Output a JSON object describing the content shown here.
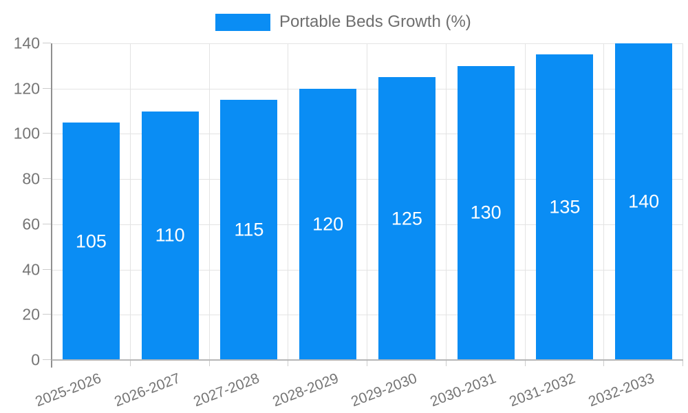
{
  "chart_data": {
    "type": "bar",
    "title": "Portable Beds Growth (%)",
    "legend": {
      "position": "top",
      "entries": [
        "Portable Beds Growth (%)"
      ]
    },
    "categories": [
      "2025-2026",
      "2026-2027",
      "2027-2028",
      "2028-2029",
      "2029-2030",
      "2030-2031",
      "2031-2032",
      "2032-2033"
    ],
    "values": [
      105,
      110,
      115,
      120,
      125,
      130,
      135,
      140
    ],
    "bar_labels": [
      "105",
      "110",
      "115",
      "120",
      "125",
      "130",
      "135",
      "140"
    ],
    "xlabel": "",
    "ylabel": "",
    "ylim": [
      0,
      140
    ],
    "yticks": [
      0,
      20,
      40,
      60,
      80,
      100,
      120,
      140
    ],
    "grid": true,
    "colors": {
      "bar": "#0A8DF4",
      "grid": "#E3E3E3",
      "tick": "#CCCCCC",
      "y_axis_line": "#8F8F8F",
      "x_axis_line": "#B6B6B6",
      "axis_text": "#757575",
      "legend_text": "#6E6E6E",
      "bar_label_text": "#FFFFFF",
      "background": "#FFFFFF"
    }
  }
}
